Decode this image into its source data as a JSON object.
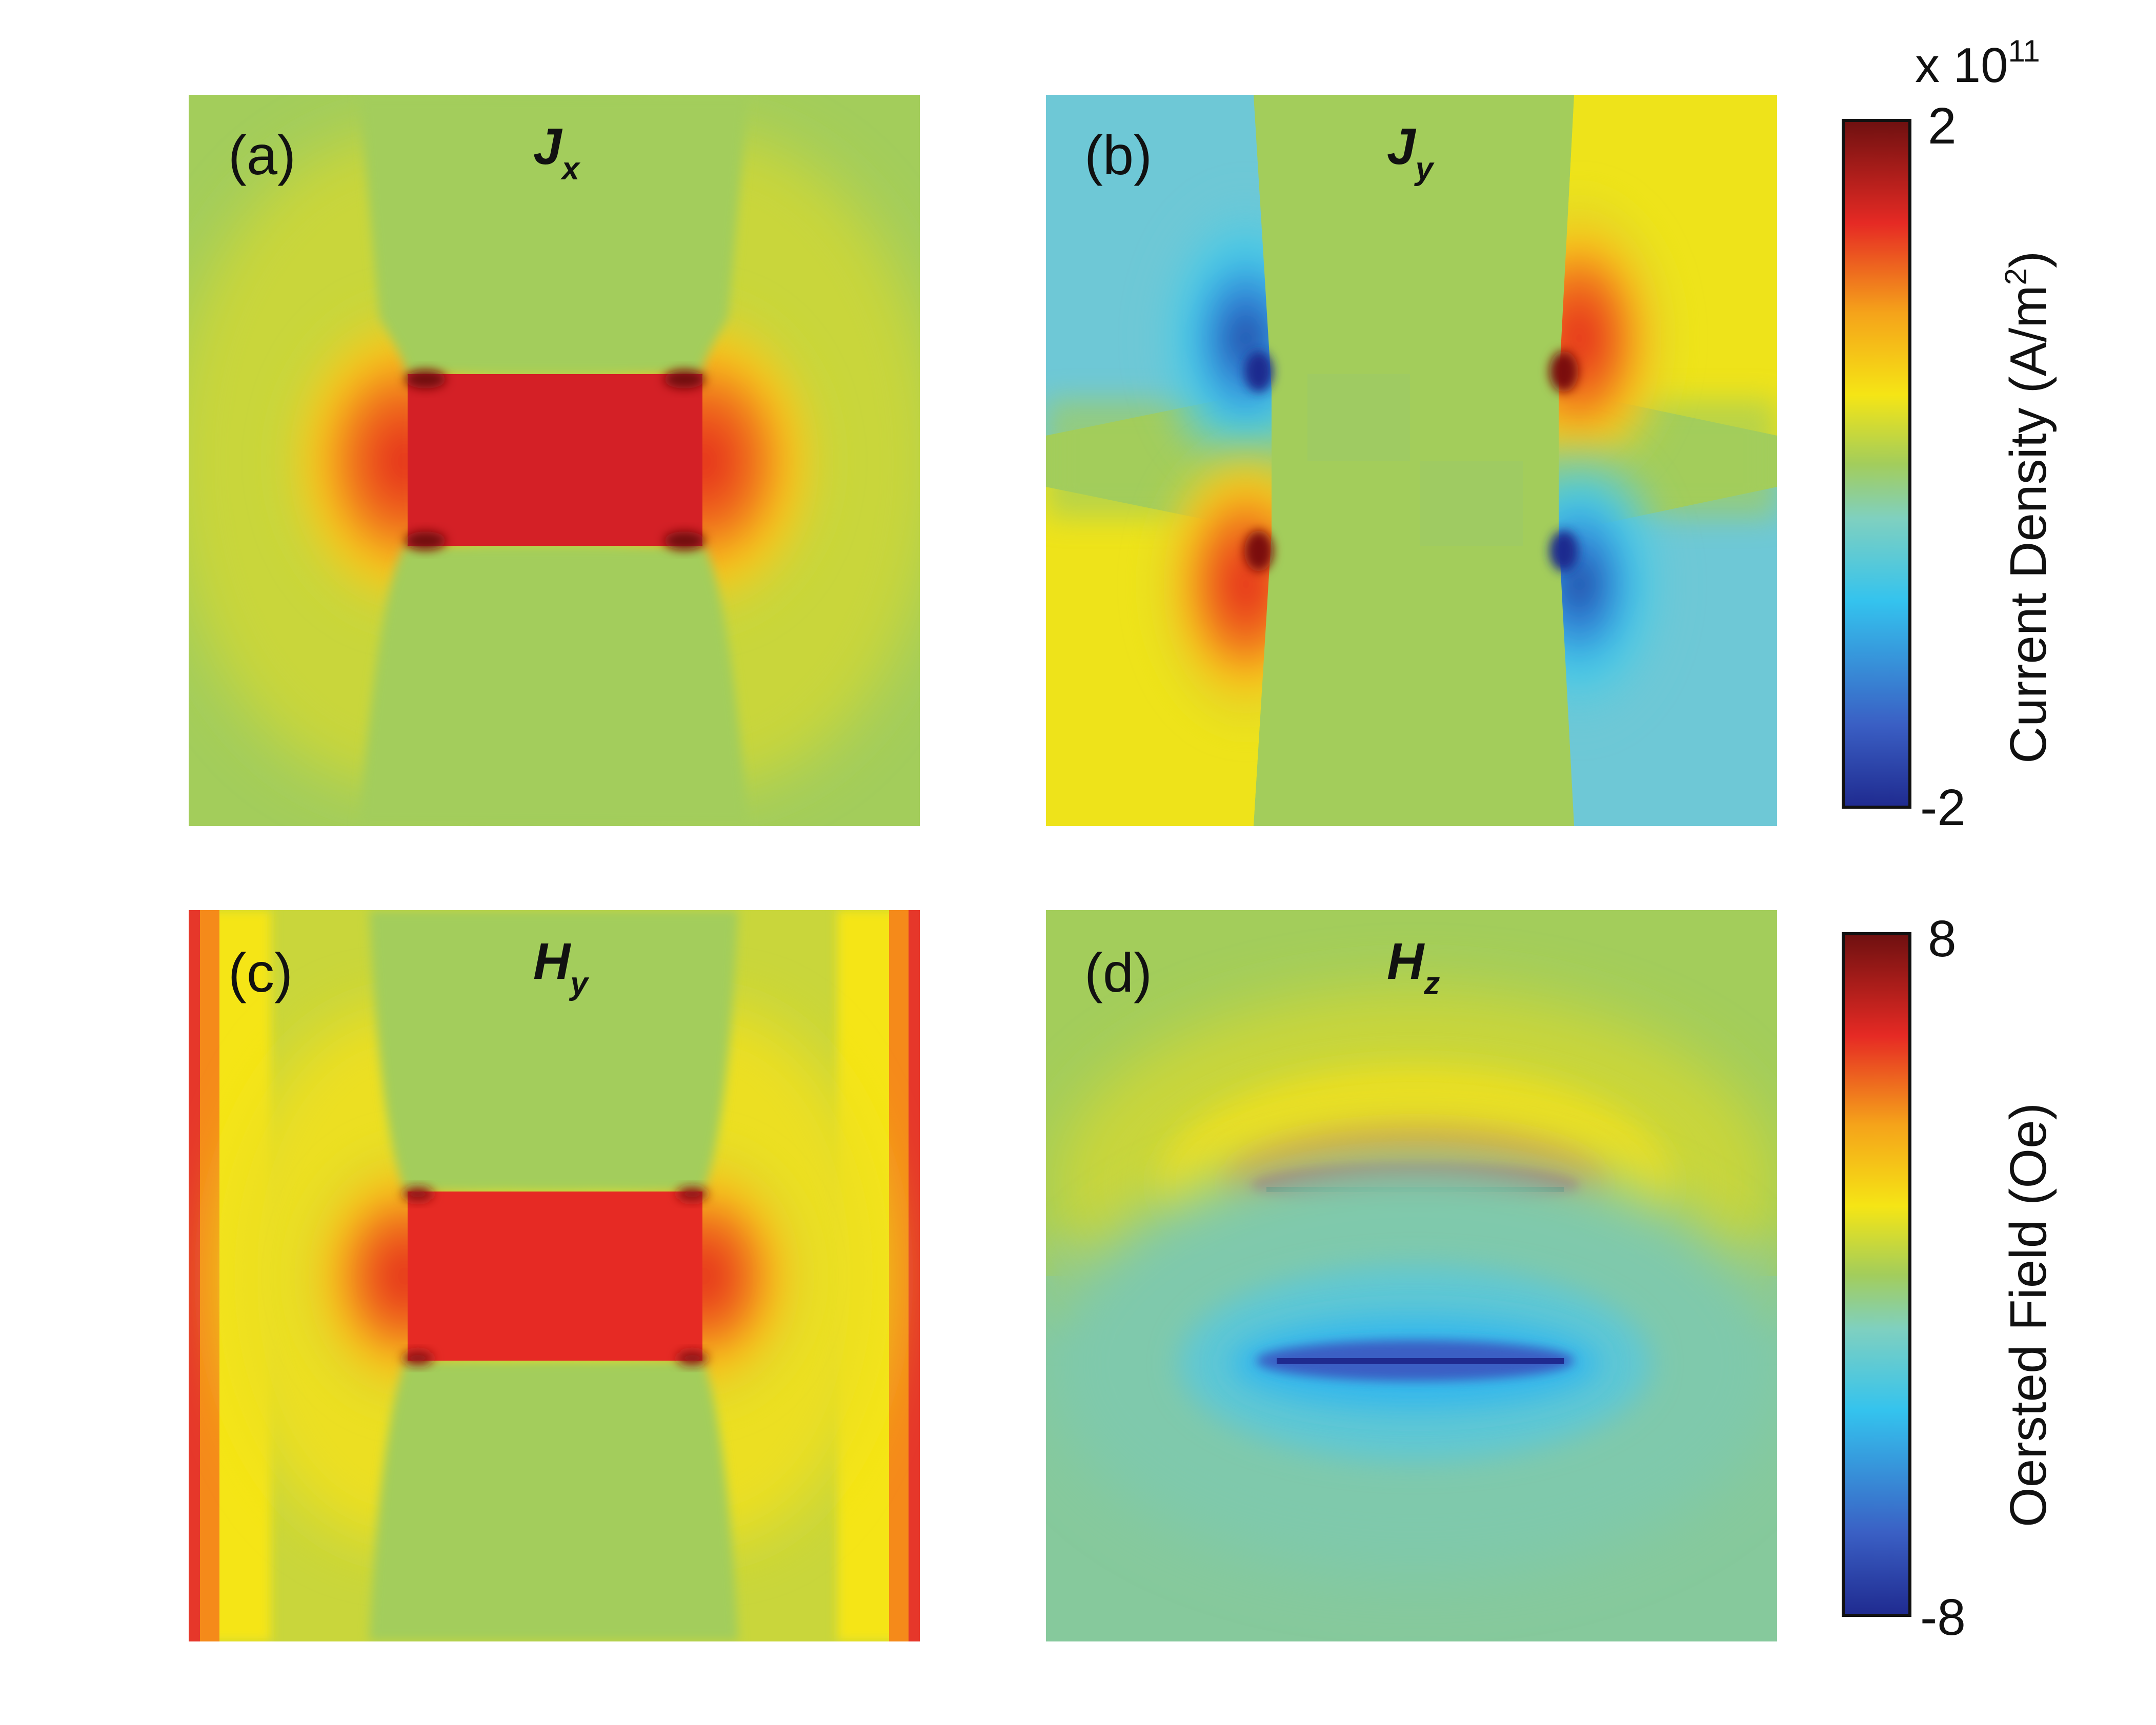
{
  "chart_data": [
    {
      "type": "heatmap",
      "panel_label": "(a)",
      "title": "J",
      "title_subscript": "x",
      "colorbar": "current_density",
      "pattern": "jx"
    },
    {
      "type": "heatmap",
      "panel_label": "(b)",
      "title": "J",
      "title_subscript": "y",
      "colorbar": "current_density",
      "pattern": "jy"
    },
    {
      "type": "heatmap",
      "panel_label": "(c)",
      "title": "H",
      "title_subscript": "y",
      "colorbar": "oersted_field",
      "pattern": "hy"
    },
    {
      "type": "heatmap",
      "panel_label": "(d)",
      "title": "H",
      "title_subscript": "z",
      "colorbar": "oersted_field",
      "pattern": "hz"
    }
  ],
  "colorbars": {
    "current_density": {
      "label": "Current Density (A/m",
      "label_superscript": "2",
      "label_suffix": ")",
      "max_tick": "2",
      "min_tick": "-2",
      "range": [
        -2,
        2
      ],
      "exponent_prefix": "x 10",
      "exponent_power": "11"
    },
    "oersted_field": {
      "label": "Oersted Field (Oe)",
      "max_tick": "8",
      "min_tick": "-8",
      "range": [
        -8,
        8
      ]
    }
  },
  "colormap": "jet",
  "colormap_stops": [
    "#00008f",
    "#0000ff",
    "#00ffff",
    "#ffff00",
    "#ff0000",
    "#800000"
  ],
  "colors": {
    "neutral_green": "#a3cd5b",
    "strong_red": "#d42026",
    "deep_red": "#7a1010",
    "deep_blue": "#1f3c96",
    "cyan": "#45c8e8",
    "yellow": "#f5e515",
    "orange": "#f59b1a"
  }
}
